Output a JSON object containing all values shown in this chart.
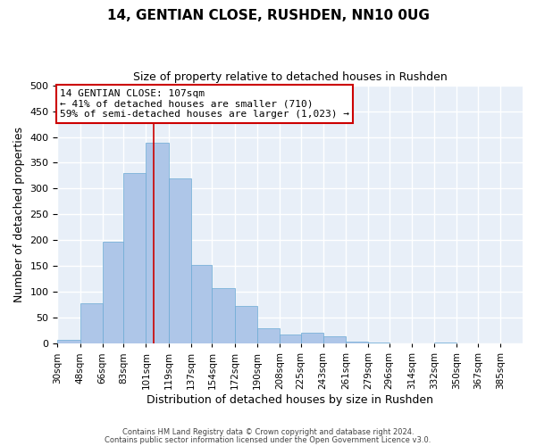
{
  "title": "14, GENTIAN CLOSE, RUSHDEN, NN10 0UG",
  "subtitle": "Size of property relative to detached houses in Rushden",
  "xlabel": "Distribution of detached houses by size in Rushden",
  "ylabel": "Number of detached properties",
  "bin_labels": [
    "30sqm",
    "48sqm",
    "66sqm",
    "83sqm",
    "101sqm",
    "119sqm",
    "137sqm",
    "154sqm",
    "172sqm",
    "190sqm",
    "208sqm",
    "225sqm",
    "243sqm",
    "261sqm",
    "279sqm",
    "296sqm",
    "314sqm",
    "332sqm",
    "350sqm",
    "367sqm",
    "385sqm"
  ],
  "bar_heights": [
    8,
    78,
    197,
    330,
    388,
    320,
    152,
    108,
    73,
    30,
    18,
    22,
    15,
    4,
    2,
    1,
    0,
    2,
    1,
    1,
    1
  ],
  "bin_edges": [
    30,
    48,
    66,
    83,
    101,
    119,
    137,
    154,
    172,
    190,
    208,
    225,
    243,
    261,
    279,
    296,
    314,
    332,
    350,
    367,
    385,
    403
  ],
  "bar_color": "#aec6e8",
  "bar_edge_color": "#6aaad4",
  "background_color": "#e8eff8",
  "grid_color": "#ffffff",
  "annotation_box_color": "#cc0000",
  "red_line_x": 107,
  "annotation_title": "14 GENTIAN CLOSE: 107sqm",
  "annotation_line1": "← 41% of detached houses are smaller (710)",
  "annotation_line2": "59% of semi-detached houses are larger (1,023) →",
  "ylim": [
    0,
    500
  ],
  "yticks": [
    0,
    50,
    100,
    150,
    200,
    250,
    300,
    350,
    400,
    450,
    500
  ],
  "footnote1": "Contains HM Land Registry data © Crown copyright and database right 2024.",
  "footnote2": "Contains public sector information licensed under the Open Government Licence v3.0."
}
